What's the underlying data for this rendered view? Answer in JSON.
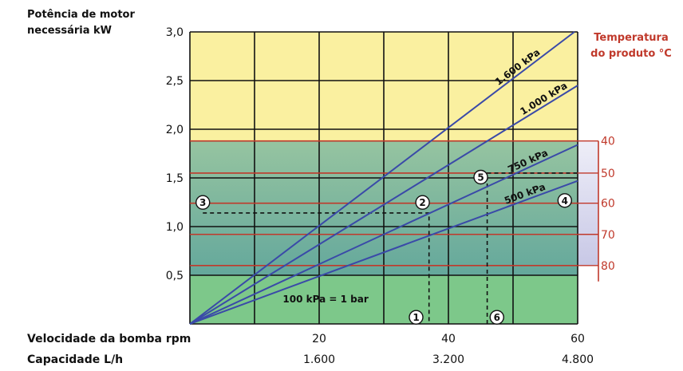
{
  "chart_data": {
    "type": "line",
    "ylabel_lines": [
      "Potência de motor",
      "necessária kW"
    ],
    "ylim": [
      0,
      3.0
    ],
    "y_ticks": [
      "0,5",
      "1,0",
      "1,5",
      "2,0",
      "2,5",
      "3,0"
    ],
    "y_tick_values": [
      0.5,
      1.0,
      1.5,
      2.0,
      2.5,
      3.0
    ],
    "xlim": [
      0,
      60
    ],
    "xlabel": "Velocidade da bomba rpm",
    "x_ticks": [
      "20",
      "40",
      "60"
    ],
    "x_tick_values": [
      20,
      40,
      60
    ],
    "x2label": "Capacidade L/h",
    "x2_ticks": [
      "1.600",
      "3.200",
      "4.800"
    ],
    "right_axis_label_lines": [
      "Temperatura",
      "do produto °C"
    ],
    "right_axis_ticks": [
      "40",
      "50",
      "60",
      "70",
      "80"
    ],
    "right_axis_tick_y": [
      1.88,
      1.55,
      1.24,
      0.92,
      0.6
    ],
    "series": [
      {
        "name": "1.600 kPa",
        "x": [
          0,
          59.5
        ],
        "y": [
          0,
          3.0
        ]
      },
      {
        "name": "1.000 kPa",
        "x": [
          0,
          60
        ],
        "y": [
          0,
          2.45
        ]
      },
      {
        "name": "750 kPa",
        "x": [
          0,
          60
        ],
        "y": [
          0,
          1.84
        ]
      },
      {
        "name": "500 kPa",
        "x": [
          0,
          60
        ],
        "y": [
          0,
          1.47
        ]
      }
    ],
    "bands": [
      {
        "from": 1.88,
        "to": 3.0,
        "color": "#faf0a0"
      },
      {
        "from": 0.5,
        "to": 1.88,
        "color_top": "#96c4a0",
        "color_bottom": "#64a89c"
      },
      {
        "from": 0,
        "to": 0.5,
        "color": "#7dc88a"
      }
    ],
    "red_lines_y": [
      1.88,
      1.55,
      1.24,
      0.92,
      0.6
    ],
    "dashed_paths": [
      {
        "x": [
          2,
          37,
          37
        ],
        "y": [
          1.14,
          1.14,
          0
        ]
      },
      {
        "x": [
          46,
          46,
          60
        ],
        "y": [
          0,
          1.55,
          1.55
        ]
      }
    ],
    "annotation": "100 kPa = 1 bar",
    "markers": [
      {
        "label": "1",
        "x": 35,
        "y": 0.06
      },
      {
        "label": "2",
        "x": 36,
        "y": 1.24
      },
      {
        "label": "3",
        "x": 2,
        "y": 1.24
      },
      {
        "label": "4",
        "x": 58,
        "y": 1.26
      },
      {
        "label": "5",
        "x": 45,
        "y": 1.5
      },
      {
        "label": "6",
        "x": 47.5,
        "y": 0.06
      }
    ],
    "colors": {
      "line": "#3a4aa8",
      "red": "#c0392b",
      "grid": "#111111",
      "scale_bg": "#d9d9ee"
    }
  }
}
